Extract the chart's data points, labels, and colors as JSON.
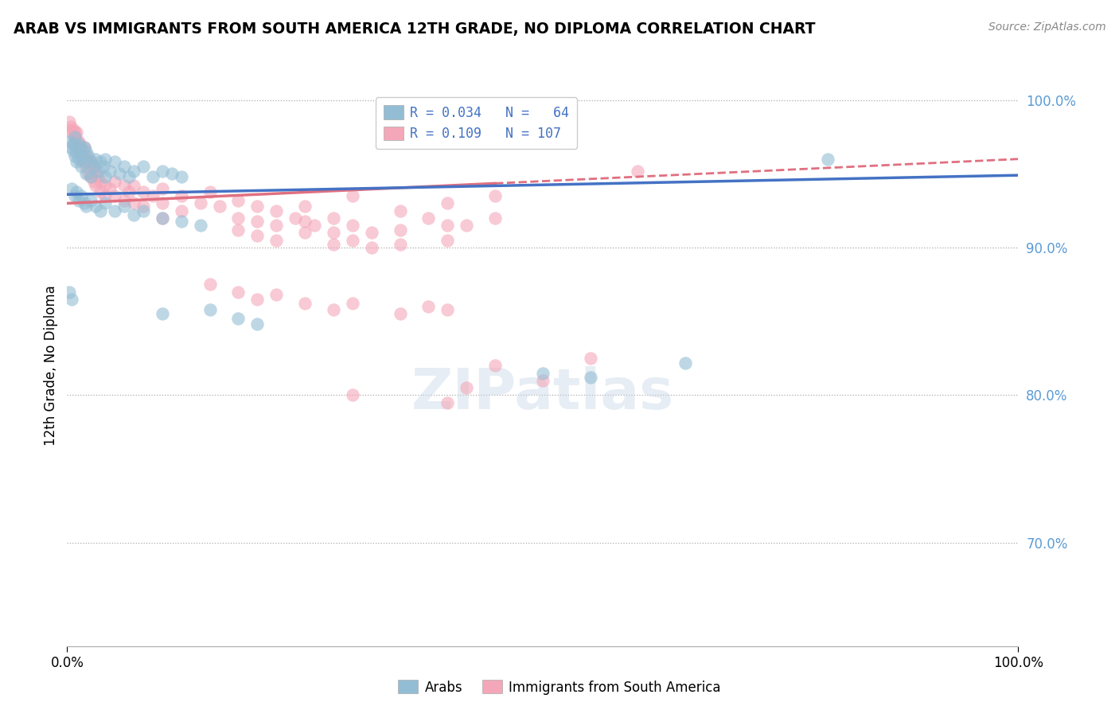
{
  "title": "ARAB VS IMMIGRANTS FROM SOUTH AMERICA 12TH GRADE, NO DIPLOMA CORRELATION CHART",
  "source_text": "Source: ZipAtlas.com",
  "ylabel": "12th Grade, No Diploma",
  "xlim": [
    0.0,
    1.0
  ],
  "ylim": [
    0.63,
    1.01
  ],
  "yticks": [
    0.7,
    0.8,
    0.9,
    1.0
  ],
  "ytick_labels": [
    "70.0%",
    "80.0%",
    "90.0%",
    "100.0%"
  ],
  "xtick_labels": [
    "0.0%",
    "100.0%"
  ],
  "blue_color": "#93bdd4",
  "pink_color": "#f4a7b9",
  "blue_line_color": "#4472c4",
  "pink_line_color": "#e07080",
  "axis_label_color": "#5b9bd5",
  "watermark": "ZIPatlas",
  "blue_scatter": [
    [
      0.002,
      0.972
    ],
    [
      0.004,
      0.968
    ],
    [
      0.006,
      0.965
    ],
    [
      0.006,
      0.97
    ],
    [
      0.008,
      0.975
    ],
    [
      0.008,
      0.962
    ],
    [
      0.01,
      0.965
    ],
    [
      0.01,
      0.958
    ],
    [
      0.012,
      0.97
    ],
    [
      0.012,
      0.96
    ],
    [
      0.014,
      0.968
    ],
    [
      0.015,
      0.955
    ],
    [
      0.016,
      0.962
    ],
    [
      0.018,
      0.968
    ],
    [
      0.018,
      0.958
    ],
    [
      0.02,
      0.965
    ],
    [
      0.02,
      0.95
    ],
    [
      0.022,
      0.962
    ],
    [
      0.025,
      0.958
    ],
    [
      0.025,
      0.948
    ],
    [
      0.028,
      0.955
    ],
    [
      0.03,
      0.96
    ],
    [
      0.032,
      0.952
    ],
    [
      0.035,
      0.958
    ],
    [
      0.038,
      0.955
    ],
    [
      0.04,
      0.96
    ],
    [
      0.04,
      0.948
    ],
    [
      0.045,
      0.952
    ],
    [
      0.05,
      0.958
    ],
    [
      0.055,
      0.95
    ],
    [
      0.06,
      0.955
    ],
    [
      0.065,
      0.948
    ],
    [
      0.07,
      0.952
    ],
    [
      0.08,
      0.955
    ],
    [
      0.09,
      0.948
    ],
    [
      0.1,
      0.952
    ],
    [
      0.11,
      0.95
    ],
    [
      0.12,
      0.948
    ],
    [
      0.005,
      0.94
    ],
    [
      0.008,
      0.935
    ],
    [
      0.01,
      0.938
    ],
    [
      0.012,
      0.932
    ],
    [
      0.015,
      0.935
    ],
    [
      0.018,
      0.93
    ],
    [
      0.02,
      0.928
    ],
    [
      0.025,
      0.932
    ],
    [
      0.03,
      0.928
    ],
    [
      0.035,
      0.925
    ],
    [
      0.04,
      0.93
    ],
    [
      0.05,
      0.925
    ],
    [
      0.06,
      0.928
    ],
    [
      0.07,
      0.922
    ],
    [
      0.08,
      0.925
    ],
    [
      0.1,
      0.92
    ],
    [
      0.12,
      0.918
    ],
    [
      0.14,
      0.915
    ],
    [
      0.002,
      0.87
    ],
    [
      0.005,
      0.865
    ],
    [
      0.1,
      0.855
    ],
    [
      0.15,
      0.858
    ],
    [
      0.18,
      0.852
    ],
    [
      0.2,
      0.848
    ],
    [
      0.5,
      0.815
    ],
    [
      0.55,
      0.812
    ],
    [
      0.65,
      0.822
    ],
    [
      0.8,
      0.96
    ]
  ],
  "pink_scatter": [
    [
      0.002,
      0.985
    ],
    [
      0.003,
      0.98
    ],
    [
      0.004,
      0.982
    ],
    [
      0.005,
      0.978
    ],
    [
      0.006,
      0.98
    ],
    [
      0.007,
      0.975
    ],
    [
      0.008,
      0.978
    ],
    [
      0.008,
      0.97
    ],
    [
      0.009,
      0.975
    ],
    [
      0.01,
      0.978
    ],
    [
      0.01,
      0.968
    ],
    [
      0.012,
      0.972
    ],
    [
      0.012,
      0.965
    ],
    [
      0.013,
      0.97
    ],
    [
      0.015,
      0.968
    ],
    [
      0.015,
      0.96
    ],
    [
      0.016,
      0.965
    ],
    [
      0.018,
      0.968
    ],
    [
      0.018,
      0.958
    ],
    [
      0.02,
      0.962
    ],
    [
      0.02,
      0.955
    ],
    [
      0.022,
      0.96
    ],
    [
      0.022,
      0.95
    ],
    [
      0.025,
      0.958
    ],
    [
      0.025,
      0.948
    ],
    [
      0.028,
      0.955
    ],
    [
      0.028,
      0.945
    ],
    [
      0.03,
      0.952
    ],
    [
      0.03,
      0.942
    ],
    [
      0.032,
      0.948
    ],
    [
      0.035,
      0.945
    ],
    [
      0.035,
      0.938
    ],
    [
      0.04,
      0.942
    ],
    [
      0.04,
      0.935
    ],
    [
      0.045,
      0.94
    ],
    [
      0.05,
      0.945
    ],
    [
      0.05,
      0.935
    ],
    [
      0.06,
      0.942
    ],
    [
      0.06,
      0.932
    ],
    [
      0.065,
      0.938
    ],
    [
      0.07,
      0.942
    ],
    [
      0.07,
      0.93
    ],
    [
      0.08,
      0.938
    ],
    [
      0.08,
      0.928
    ],
    [
      0.09,
      0.935
    ],
    [
      0.1,
      0.94
    ],
    [
      0.1,
      0.93
    ],
    [
      0.1,
      0.92
    ],
    [
      0.12,
      0.935
    ],
    [
      0.12,
      0.925
    ],
    [
      0.14,
      0.93
    ],
    [
      0.15,
      0.938
    ],
    [
      0.16,
      0.928
    ],
    [
      0.18,
      0.932
    ],
    [
      0.18,
      0.92
    ],
    [
      0.18,
      0.912
    ],
    [
      0.2,
      0.928
    ],
    [
      0.2,
      0.918
    ],
    [
      0.2,
      0.908
    ],
    [
      0.22,
      0.925
    ],
    [
      0.22,
      0.915
    ],
    [
      0.22,
      0.905
    ],
    [
      0.24,
      0.92
    ],
    [
      0.25,
      0.928
    ],
    [
      0.25,
      0.918
    ],
    [
      0.25,
      0.91
    ],
    [
      0.26,
      0.915
    ],
    [
      0.28,
      0.92
    ],
    [
      0.28,
      0.91
    ],
    [
      0.28,
      0.902
    ],
    [
      0.3,
      0.915
    ],
    [
      0.3,
      0.905
    ],
    [
      0.3,
      0.935
    ],
    [
      0.32,
      0.91
    ],
    [
      0.32,
      0.9
    ],
    [
      0.35,
      0.925
    ],
    [
      0.35,
      0.912
    ],
    [
      0.35,
      0.902
    ],
    [
      0.38,
      0.92
    ],
    [
      0.4,
      0.93
    ],
    [
      0.4,
      0.915
    ],
    [
      0.4,
      0.905
    ],
    [
      0.42,
      0.915
    ],
    [
      0.45,
      0.935
    ],
    [
      0.45,
      0.92
    ],
    [
      0.15,
      0.875
    ],
    [
      0.18,
      0.87
    ],
    [
      0.2,
      0.865
    ],
    [
      0.22,
      0.868
    ],
    [
      0.25,
      0.862
    ],
    [
      0.28,
      0.858
    ],
    [
      0.3,
      0.862
    ],
    [
      0.35,
      0.855
    ],
    [
      0.38,
      0.86
    ],
    [
      0.4,
      0.858
    ],
    [
      0.45,
      0.82
    ],
    [
      0.5,
      0.81
    ],
    [
      0.55,
      0.825
    ],
    [
      0.3,
      0.8
    ],
    [
      0.4,
      0.795
    ],
    [
      0.42,
      0.805
    ],
    [
      0.6,
      0.952
    ]
  ]
}
